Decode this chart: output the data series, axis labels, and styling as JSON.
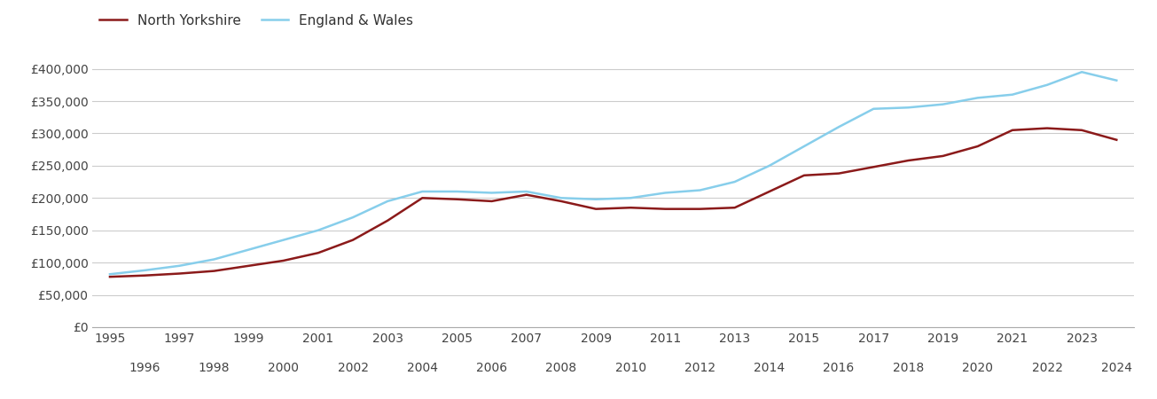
{
  "north_yorkshire": {
    "years": [
      1995,
      1996,
      1997,
      1998,
      1999,
      2000,
      2001,
      2002,
      2003,
      2004,
      2005,
      2006,
      2007,
      2008,
      2009,
      2010,
      2011,
      2012,
      2013,
      2014,
      2015,
      2016,
      2017,
      2018,
      2019,
      2020,
      2021,
      2022,
      2023,
      2024
    ],
    "values": [
      78000,
      80000,
      83000,
      87000,
      95000,
      103000,
      115000,
      135000,
      165000,
      200000,
      198000,
      195000,
      205000,
      195000,
      183000,
      185000,
      183000,
      183000,
      185000,
      210000,
      235000,
      238000,
      248000,
      258000,
      265000,
      280000,
      305000,
      308000,
      305000,
      290000
    ]
  },
  "england_wales": {
    "years": [
      1995,
      1996,
      1997,
      1998,
      1999,
      2000,
      2001,
      2002,
      2003,
      2004,
      2005,
      2006,
      2007,
      2008,
      2009,
      2010,
      2011,
      2012,
      2013,
      2014,
      2015,
      2016,
      2017,
      2018,
      2019,
      2020,
      2021,
      2022,
      2023,
      2024
    ],
    "values": [
      82000,
      88000,
      95000,
      105000,
      120000,
      135000,
      150000,
      170000,
      195000,
      210000,
      210000,
      208000,
      210000,
      200000,
      198000,
      200000,
      208000,
      212000,
      225000,
      250000,
      280000,
      310000,
      338000,
      340000,
      345000,
      355000,
      360000,
      375000,
      395000,
      382000
    ]
  },
  "north_yorkshire_color": "#8B1A1A",
  "england_wales_color": "#87CEEB",
  "north_yorkshire_label": "North Yorkshire",
  "england_wales_label": "England & Wales",
  "ylim": [
    0,
    420000
  ],
  "yticks": [
    0,
    50000,
    100000,
    150000,
    200000,
    250000,
    300000,
    350000,
    400000
  ],
  "ytick_labels": [
    "£0",
    "£50,000",
    "£100,000",
    "£150,000",
    "£200,000",
    "£250,000",
    "£300,000",
    "£350,000",
    "£400,000"
  ],
  "xticks_odd": [
    1995,
    1997,
    1999,
    2001,
    2003,
    2005,
    2007,
    2009,
    2011,
    2013,
    2015,
    2017,
    2019,
    2021,
    2023
  ],
  "xticks_even": [
    1996,
    1998,
    2000,
    2002,
    2004,
    2006,
    2008,
    2010,
    2012,
    2014,
    2016,
    2018,
    2020,
    2022,
    2024
  ],
  "xlim": [
    1994.5,
    2024.5
  ],
  "line_width": 1.8,
  "background_color": "#ffffff",
  "grid_color": "#cccccc"
}
